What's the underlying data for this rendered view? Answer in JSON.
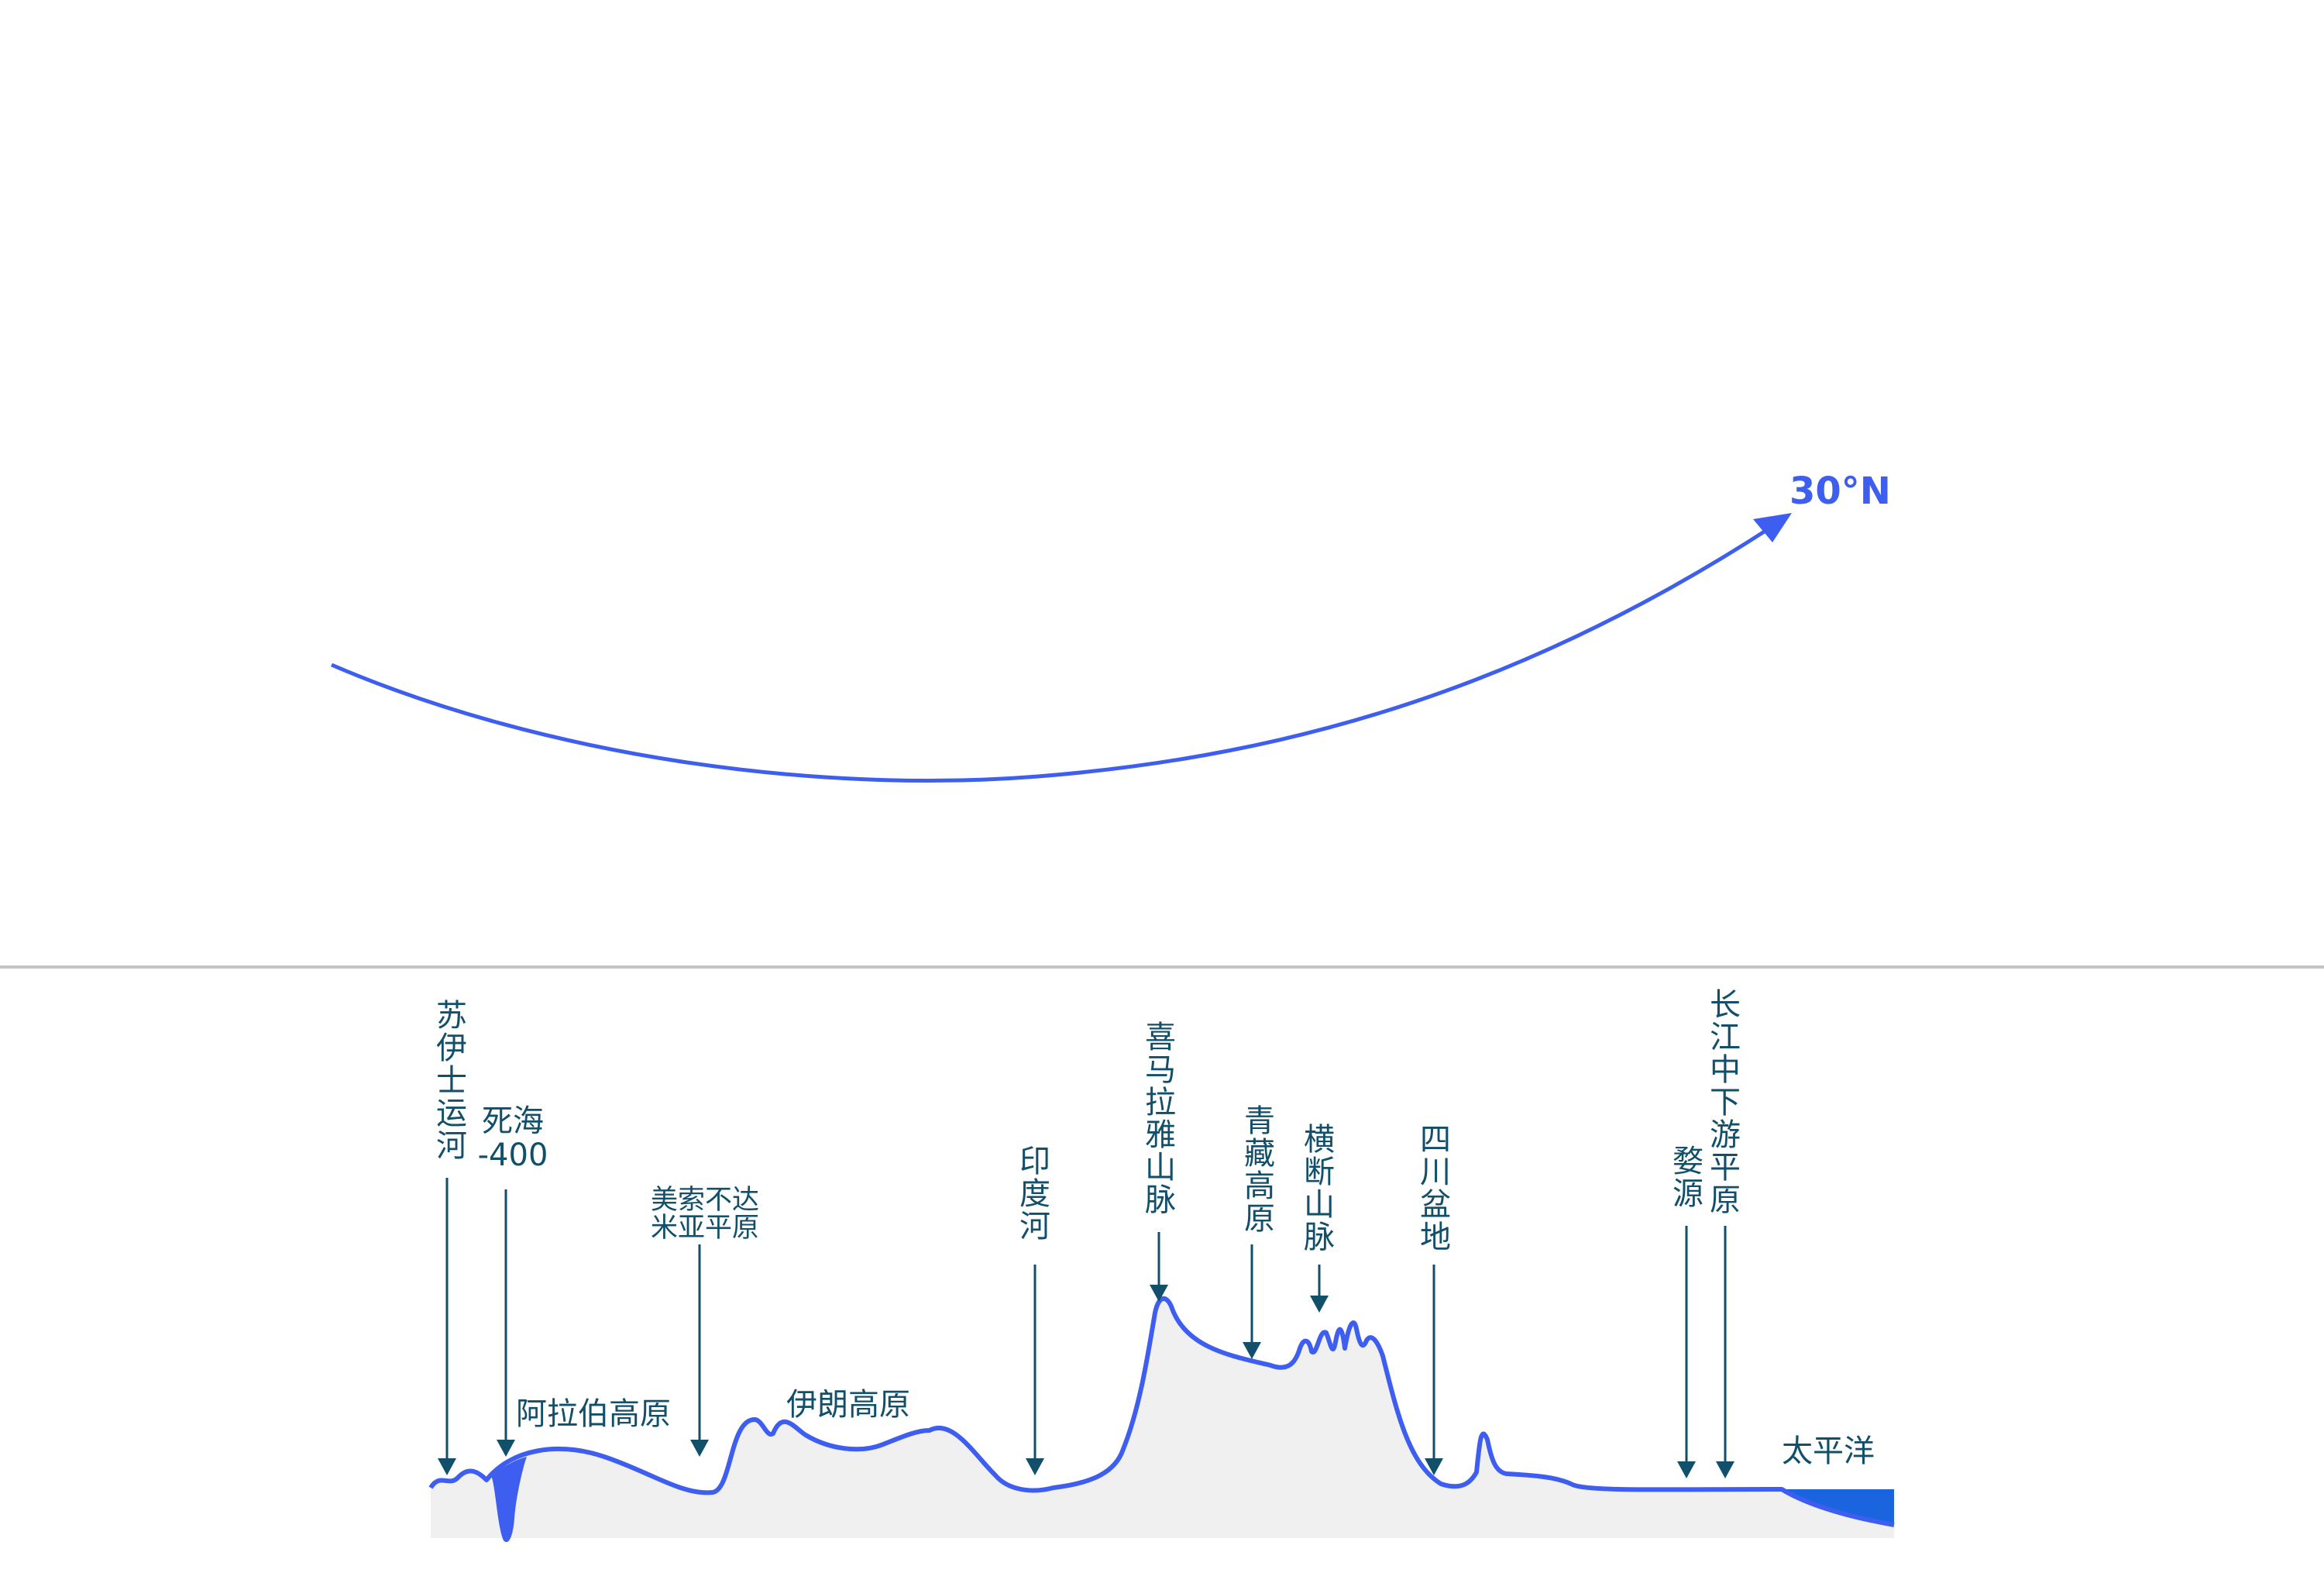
{
  "route": {
    "latitude_label": "30°N",
    "color": "#3e5ef0"
  },
  "profile": {
    "line_color": "#3e5ef0",
    "ground_color": "#f0f0f0",
    "label_color": "#114f6a",
    "sea_color": "#1a64e0"
  },
  "labels": {
    "suez": "苏伊士运河",
    "dead_sea_name": "死海",
    "dead_sea_value": "-400",
    "arabian_plateau": "阿拉伯高原",
    "mesopotamia_line1": "美索不达",
    "mesopotamia_line2": "米亚平原",
    "iranian_plateau": "伊朗高原",
    "indus": "印度河",
    "himalaya": "喜马拉雅山脉",
    "tibet": "青藏高原",
    "hengduan": "横断山脉",
    "sichuan": "四川盆地",
    "wuyuan": "婺源",
    "yangtze": "长江中下游平原",
    "pacific": "太平洋"
  }
}
